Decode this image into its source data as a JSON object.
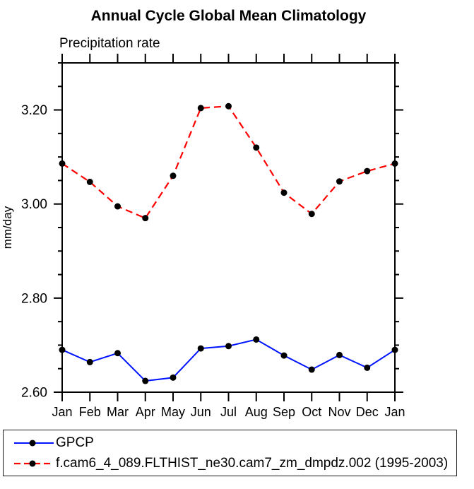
{
  "chart_data": {
    "type": "line",
    "title": "Annual Cycle Global Mean Climatology",
    "subtitle": "Precipitation rate",
    "ylabel": "mm/day",
    "x_categories": [
      "Jan",
      "Feb",
      "Mar",
      "Apr",
      "May",
      "Jun",
      "Jul",
      "Aug",
      "Sep",
      "Oct",
      "Nov",
      "Dec",
      "Jan"
    ],
    "ylim": [
      2.6,
      3.3
    ],
    "ytick_minor_step": 0.05,
    "ytick_major": [
      2.6,
      2.8,
      3.0,
      3.2
    ],
    "ytick_major_labels": [
      "2.60",
      "2.80",
      "3.00",
      "3.20"
    ],
    "grid": false,
    "legend_position": "bottom-left-box",
    "axis_color": "#000000",
    "marker_radius": 4.5,
    "series": [
      {
        "name": "GPCP",
        "color": "#0014ff",
        "line_style": "solid",
        "line_width": 2,
        "marker": "filled-circle",
        "marker_color": "#000000",
        "values": [
          2.69,
          2.664,
          2.683,
          2.624,
          2.631,
          2.693,
          2.698,
          2.712,
          2.678,
          2.648,
          2.679,
          2.652,
          2.69
        ]
      },
      {
        "name": "f.cam6_4_089.FLTHIST_ne30.cam7_zm_dmpdz.002 (1995-2003)",
        "color": "#ff0000",
        "line_style": "dashed",
        "line_width": 2.2,
        "marker": "filled-circle",
        "marker_color": "#000000",
        "values": [
          3.086,
          3.047,
          2.995,
          2.97,
          3.06,
          3.204,
          3.208,
          3.12,
          3.024,
          2.979,
          3.048,
          3.07,
          3.086
        ]
      }
    ]
  }
}
